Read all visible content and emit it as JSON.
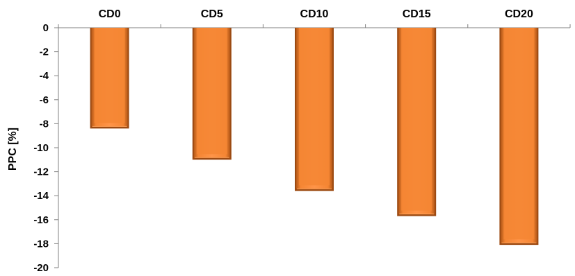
{
  "chart_data": {
    "type": "bar",
    "categories": [
      "CD0",
      "CD5",
      "CD10",
      "CD15",
      "CD20"
    ],
    "values": [
      -8.4,
      -11.0,
      -13.6,
      -15.7,
      -18.1
    ],
    "title": "",
    "xlabel": "",
    "ylabel": "PPC [%]",
    "ylim": [
      -20,
      0
    ],
    "yticks": [
      0,
      -2,
      -4,
      -6,
      -8,
      -10,
      -12,
      -14,
      -16,
      -18,
      -20
    ],
    "category_axis_position": "top",
    "grid": false,
    "legend": "none",
    "colors": {
      "bar_fill": "#F58634",
      "bar_light": "#FFA25A",
      "bar_shadow": "#9C4A12",
      "axis": "#808080",
      "text": "#000000"
    }
  }
}
